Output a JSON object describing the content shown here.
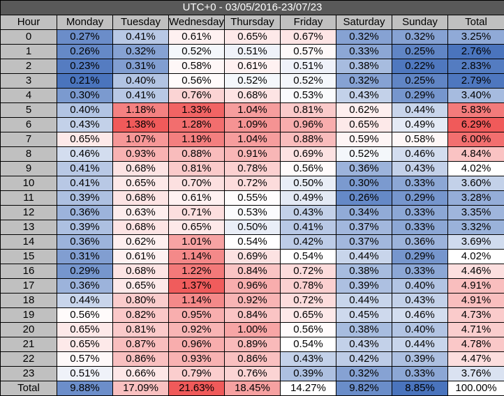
{
  "title": "UTC+0 - 03/05/2016-23/07/23",
  "chart_data": {
    "type": "heatmap",
    "title": "UTC+0 - 03/05/2016-23/07/23",
    "row_header": "Hour",
    "columns": [
      "Monday",
      "Tuesday",
      "Wednesday",
      "Thursday",
      "Friday",
      "Saturday",
      "Sunday",
      "Total"
    ],
    "hours": [
      "0",
      "1",
      "2",
      "3",
      "4",
      "5",
      "6",
      "7",
      "8",
      "9",
      "10",
      "11",
      "12",
      "13",
      "14",
      "15",
      "16",
      "17",
      "18",
      "19",
      "20",
      "21",
      "22",
      "23"
    ],
    "values": [
      [
        "0.27%",
        "0.41%",
        "0.61%",
        "0.65%",
        "0.67%",
        "0.32%",
        "0.32%",
        "3.25%"
      ],
      [
        "0.26%",
        "0.32%",
        "0.52%",
        "0.51%",
        "0.57%",
        "0.33%",
        "0.25%",
        "2.76%"
      ],
      [
        "0.23%",
        "0.31%",
        "0.58%",
        "0.61%",
        "0.51%",
        "0.38%",
        "0.22%",
        "2.83%"
      ],
      [
        "0.21%",
        "0.40%",
        "0.56%",
        "0.52%",
        "0.52%",
        "0.32%",
        "0.25%",
        "2.79%"
      ],
      [
        "0.30%",
        "0.41%",
        "0.76%",
        "0.68%",
        "0.53%",
        "0.43%",
        "0.29%",
        "3.40%"
      ],
      [
        "0.40%",
        "1.18%",
        "1.33%",
        "1.04%",
        "0.81%",
        "0.62%",
        "0.44%",
        "5.83%"
      ],
      [
        "0.43%",
        "1.38%",
        "1.28%",
        "1.09%",
        "0.96%",
        "0.65%",
        "0.49%",
        "6.29%"
      ],
      [
        "0.65%",
        "1.07%",
        "1.19%",
        "1.04%",
        "0.88%",
        "0.59%",
        "0.58%",
        "6.00%"
      ],
      [
        "0.46%",
        "0.93%",
        "0.88%",
        "0.91%",
        "0.69%",
        "0.52%",
        "0.46%",
        "4.84%"
      ],
      [
        "0.41%",
        "0.68%",
        "0.81%",
        "0.78%",
        "0.56%",
        "0.36%",
        "0.43%",
        "4.02%"
      ],
      [
        "0.41%",
        "0.65%",
        "0.70%",
        "0.72%",
        "0.50%",
        "0.30%",
        "0.33%",
        "3.60%"
      ],
      [
        "0.39%",
        "0.68%",
        "0.61%",
        "0.55%",
        "0.49%",
        "0.26%",
        "0.29%",
        "3.28%"
      ],
      [
        "0.36%",
        "0.63%",
        "0.71%",
        "0.53%",
        "0.43%",
        "0.34%",
        "0.33%",
        "3.35%"
      ],
      [
        "0.39%",
        "0.68%",
        "0.65%",
        "0.50%",
        "0.41%",
        "0.37%",
        "0.33%",
        "3.32%"
      ],
      [
        "0.36%",
        "0.62%",
        "1.01%",
        "0.54%",
        "0.42%",
        "0.37%",
        "0.36%",
        "3.69%"
      ],
      [
        "0.31%",
        "0.61%",
        "1.14%",
        "0.69%",
        "0.54%",
        "0.44%",
        "0.29%",
        "4.02%"
      ],
      [
        "0.29%",
        "0.68%",
        "1.22%",
        "0.84%",
        "0.72%",
        "0.38%",
        "0.33%",
        "4.46%"
      ],
      [
        "0.36%",
        "0.65%",
        "1.37%",
        "0.96%",
        "0.78%",
        "0.39%",
        "0.40%",
        "4.91%"
      ],
      [
        "0.44%",
        "0.80%",
        "1.14%",
        "0.92%",
        "0.72%",
        "0.44%",
        "0.43%",
        "4.91%"
      ],
      [
        "0.56%",
        "0.82%",
        "0.95%",
        "0.84%",
        "0.65%",
        "0.45%",
        "0.46%",
        "4.73%"
      ],
      [
        "0.65%",
        "0.81%",
        "0.92%",
        "1.00%",
        "0.56%",
        "0.38%",
        "0.40%",
        "4.71%"
      ],
      [
        "0.65%",
        "0.87%",
        "0.96%",
        "0.89%",
        "0.54%",
        "0.43%",
        "0.44%",
        "4.78%"
      ],
      [
        "0.57%",
        "0.86%",
        "0.93%",
        "0.86%",
        "0.43%",
        "0.42%",
        "0.39%",
        "4.47%"
      ],
      [
        "0.51%",
        "0.66%",
        "0.79%",
        "0.76%",
        "0.39%",
        "0.32%",
        "0.33%",
        "3.76%"
      ]
    ],
    "total_row": {
      "label": "Total",
      "values": [
        "9.88%",
        "17.09%",
        "21.63%",
        "18.45%",
        "14.27%",
        "9.82%",
        "8.85%",
        "100.00%"
      ]
    },
    "colors": {
      "low": "#4a74bd",
      "mid": "#ffffff",
      "high": "#f05a5a",
      "header": "#c0c0c0",
      "title_bar": "#595959"
    }
  }
}
